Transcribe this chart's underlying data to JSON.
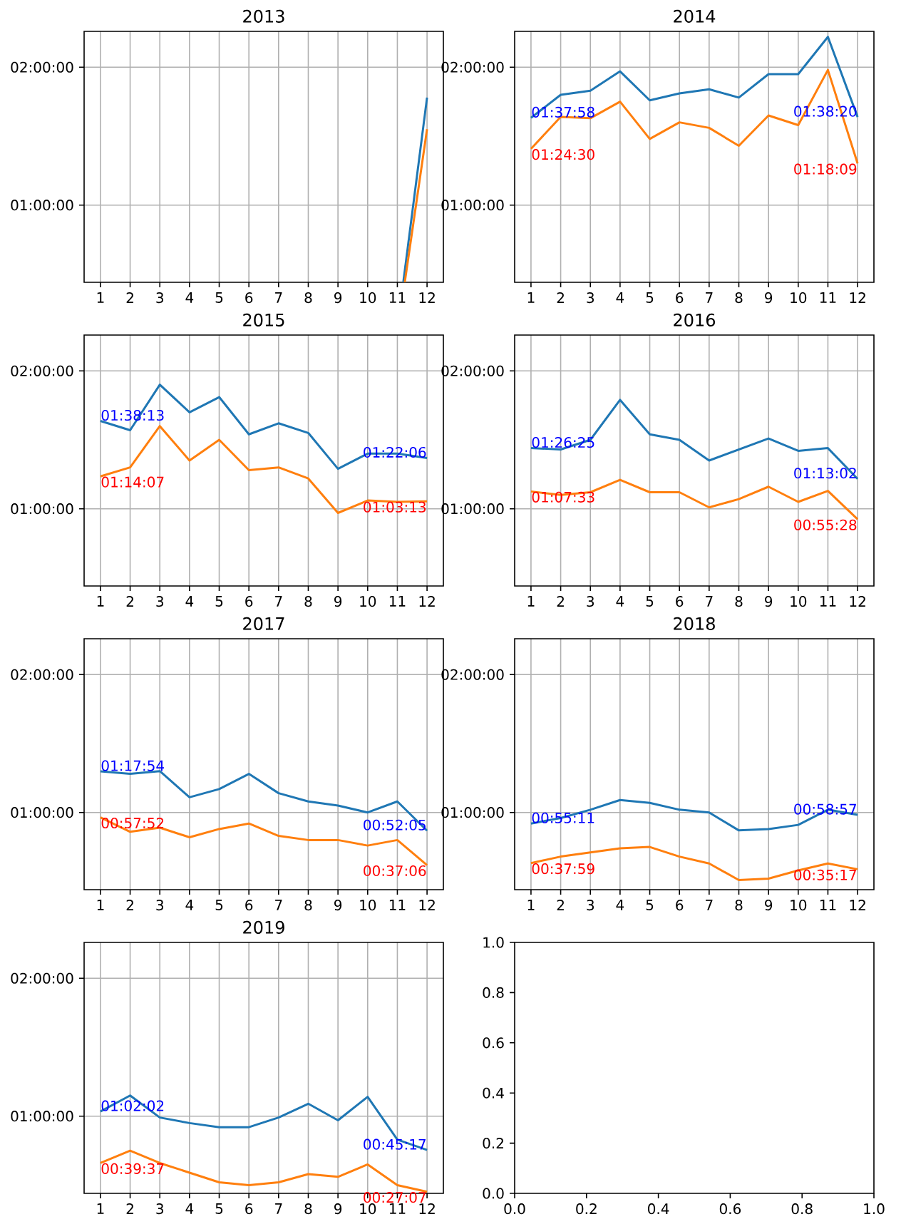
{
  "chart_data": [
    {
      "type": "line",
      "title": "2013",
      "xlim": [
        0.45,
        12.55
      ],
      "ylim": [
        0.44,
        2.26
      ],
      "xticks": [
        1,
        2,
        3,
        4,
        5,
        6,
        7,
        8,
        9,
        10,
        11,
        12
      ],
      "yticks": [
        {
          "value": 1,
          "label": "01:00:00"
        },
        {
          "value": 2,
          "label": "02:00:00"
        }
      ],
      "grid": true,
      "series": [
        {
          "color": "#1f77b4",
          "x": [
            11.2,
            12
          ],
          "values": [
            0.44,
            1.78
          ]
        },
        {
          "color": "#ff7f0e",
          "x": [
            11.25,
            12
          ],
          "values": [
            0.44,
            1.55
          ]
        }
      ]
    },
    {
      "type": "line",
      "title": "2014",
      "x": [
        1,
        2,
        3,
        4,
        5,
        6,
        7,
        8,
        9,
        10,
        11,
        12
      ],
      "xlim": [
        0.45,
        12.55
      ],
      "ylim": [
        0.44,
        2.26
      ],
      "xticks": [
        1,
        2,
        3,
        4,
        5,
        6,
        7,
        8,
        9,
        10,
        11,
        12
      ],
      "yticks": [
        {
          "value": 1,
          "label": "01:00:00"
        },
        {
          "value": 2,
          "label": "02:00:00"
        }
      ],
      "grid": true,
      "series": [
        {
          "color": "#1f77b4",
          "values": [
            1.6328,
            1.8,
            1.83,
            1.97,
            1.76,
            1.81,
            1.84,
            1.78,
            1.95,
            1.95,
            2.22,
            1.6389
          ]
        },
        {
          "color": "#ff7f0e",
          "values": [
            1.4083,
            1.64,
            1.63,
            1.75,
            1.48,
            1.6,
            1.56,
            1.43,
            1.65,
            1.58,
            1.98,
            1.3025
          ]
        }
      ],
      "annotations": [
        "01:37:58",
        "01:38:20",
        "01:24:30",
        "01:18:09"
      ]
    },
    {
      "type": "line",
      "title": "2015",
      "x": [
        1,
        2,
        3,
        4,
        5,
        6,
        7,
        8,
        9,
        10,
        11,
        12
      ],
      "xlim": [
        0.45,
        12.55
      ],
      "ylim": [
        0.44,
        2.26
      ],
      "xticks": [
        1,
        2,
        3,
        4,
        5,
        6,
        7,
        8,
        9,
        10,
        11,
        12
      ],
      "yticks": [
        {
          "value": 1,
          "label": "01:00:00"
        },
        {
          "value": 2,
          "label": "02:00:00"
        }
      ],
      "grid": true,
      "series": [
        {
          "color": "#1f77b4",
          "values": [
            1.6369,
            1.57,
            1.9,
            1.7,
            1.81,
            1.54,
            1.62,
            1.55,
            1.29,
            1.4,
            1.4,
            1.3683
          ]
        },
        {
          "color": "#ff7f0e",
          "values": [
            1.2353,
            1.3,
            1.6,
            1.35,
            1.5,
            1.28,
            1.3,
            1.22,
            0.97,
            1.06,
            1.05,
            1.0536
          ]
        }
      ],
      "annotations": [
        "01:38:13",
        "01:22:06",
        "01:14:07",
        "01:03:13"
      ]
    },
    {
      "type": "line",
      "title": "2016",
      "x": [
        1,
        2,
        3,
        4,
        5,
        6,
        7,
        8,
        9,
        10,
        11,
        12
      ],
      "xlim": [
        0.45,
        12.55
      ],
      "ylim": [
        0.44,
        2.26
      ],
      "xticks": [
        1,
        2,
        3,
        4,
        5,
        6,
        7,
        8,
        9,
        10,
        11,
        12
      ],
      "yticks": [
        {
          "value": 1,
          "label": "01:00:00"
        },
        {
          "value": 2,
          "label": "02:00:00"
        }
      ],
      "grid": true,
      "series": [
        {
          "color": "#1f77b4",
          "values": [
            1.4403,
            1.43,
            1.5,
            1.79,
            1.54,
            1.5,
            1.35,
            1.43,
            1.51,
            1.42,
            1.44,
            1.2172
          ]
        },
        {
          "color": "#ff7f0e",
          "values": [
            1.1258,
            1.1,
            1.12,
            1.21,
            1.12,
            1.12,
            1.01,
            1.07,
            1.16,
            1.05,
            1.13,
            0.9244
          ]
        }
      ],
      "annotations": [
        "01:26:25",
        "01:13:02",
        "01:07:33",
        "00:55:28"
      ]
    },
    {
      "type": "line",
      "title": "2017",
      "x": [
        1,
        2,
        3,
        4,
        5,
        6,
        7,
        8,
        9,
        10,
        11,
        12
      ],
      "xlim": [
        0.45,
        12.55
      ],
      "ylim": [
        0.44,
        2.26
      ],
      "xticks": [
        1,
        2,
        3,
        4,
        5,
        6,
        7,
        8,
        9,
        10,
        11,
        12
      ],
      "yticks": [
        {
          "value": 1,
          "label": "01:00:00"
        },
        {
          "value": 2,
          "label": "02:00:00"
        }
      ],
      "grid": true,
      "series": [
        {
          "color": "#1f77b4",
          "values": [
            1.2983,
            1.28,
            1.3,
            1.11,
            1.17,
            1.28,
            1.14,
            1.08,
            1.05,
            1.0,
            1.08,
            0.8681
          ]
        },
        {
          "color": "#ff7f0e",
          "values": [
            0.9644,
            0.86,
            0.89,
            0.82,
            0.88,
            0.92,
            0.83,
            0.8,
            0.8,
            0.76,
            0.8,
            0.6183
          ]
        }
      ],
      "annotations": [
        "01:17:54",
        "00:52:05",
        "00:57:52",
        "00:37:06"
      ]
    },
    {
      "type": "line",
      "title": "2018",
      "x": [
        1,
        2,
        3,
        4,
        5,
        6,
        7,
        8,
        9,
        10,
        11,
        12
      ],
      "xlim": [
        0.45,
        12.55
      ],
      "ylim": [
        0.44,
        2.26
      ],
      "xticks": [
        1,
        2,
        3,
        4,
        5,
        6,
        7,
        8,
        9,
        10,
        11,
        12
      ],
      "yticks": [
        {
          "value": 1,
          "label": "01:00:00"
        },
        {
          "value": 2,
          "label": "02:00:00"
        }
      ],
      "grid": true,
      "series": [
        {
          "color": "#1f77b4",
          "values": [
            0.9197,
            0.96,
            1.02,
            1.09,
            1.07,
            1.02,
            1.0,
            0.87,
            0.88,
            0.91,
            1.02,
            0.9825
          ]
        },
        {
          "color": "#ff7f0e",
          "values": [
            0.6331,
            0.68,
            0.71,
            0.74,
            0.75,
            0.68,
            0.63,
            0.51,
            0.52,
            0.58,
            0.63,
            0.5881
          ]
        }
      ],
      "annotations": [
        "00:55:11",
        "00:58:57",
        "00:37:59",
        "00:35:17"
      ]
    },
    {
      "type": "line",
      "title": "2019",
      "x": [
        1,
        2,
        3,
        4,
        5,
        6,
        7,
        8,
        9,
        10,
        11,
        12
      ],
      "xlim": [
        0.45,
        12.55
      ],
      "ylim": [
        0.44,
        2.26
      ],
      "xticks": [
        1,
        2,
        3,
        4,
        5,
        6,
        7,
        8,
        9,
        10,
        11,
        12
      ],
      "yticks": [
        {
          "value": 1,
          "label": "01:00:00"
        },
        {
          "value": 2,
          "label": "02:00:00"
        }
      ],
      "grid": true,
      "series": [
        {
          "color": "#1f77b4",
          "values": [
            1.0339,
            1.15,
            0.99,
            0.95,
            0.92,
            0.92,
            0.99,
            1.09,
            0.97,
            1.14,
            0.83,
            0.7547
          ]
        },
        {
          "color": "#ff7f0e",
          "values": [
            0.6603,
            0.75,
            0.66,
            0.59,
            0.52,
            0.5,
            0.52,
            0.58,
            0.56,
            0.65,
            0.5,
            0.4519
          ]
        }
      ],
      "annotations": [
        "01:02:02",
        "00:45:17",
        "00:39:37",
        "00:27:07"
      ]
    },
    {
      "type": "line",
      "xlim": [
        0,
        1
      ],
      "ylim": [
        0,
        1
      ],
      "xticks": [
        {
          "value": 0,
          "label": "0.0"
        },
        {
          "value": 0.2,
          "label": "0.2"
        },
        {
          "value": 0.4,
          "label": "0.4"
        },
        {
          "value": 0.6,
          "label": "0.6"
        },
        {
          "value": 0.8,
          "label": "0.8"
        },
        {
          "value": 1,
          "label": "1.0"
        }
      ],
      "yticks": [
        {
          "value": 0,
          "label": "0.0"
        },
        {
          "value": 0.2,
          "label": "0.2"
        },
        {
          "value": 0.4,
          "label": "0.4"
        },
        {
          "value": 0.6,
          "label": "0.6"
        },
        {
          "value": 0.8,
          "label": "0.8"
        },
        {
          "value": 1,
          "label": "1.0"
        }
      ]
    }
  ]
}
